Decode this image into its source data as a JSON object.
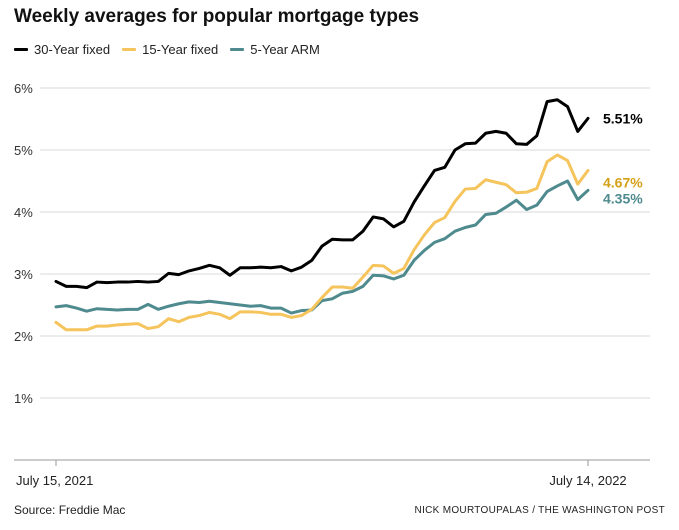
{
  "title": "Weekly averages for popular mortgage types",
  "source": "Source: Freddie Mac",
  "credit": "NICK MOURTOUPALAS / THE WASHINGTON POST",
  "chart_data": {
    "type": "line",
    "title": "Weekly averages for popular mortgage types",
    "xlabel": "",
    "ylabel": "",
    "ylim": [
      0,
      6
    ],
    "y_ticks": [
      1,
      2,
      3,
      4,
      5,
      6
    ],
    "y_tick_labels": [
      "1%",
      "2%",
      "3%",
      "4%",
      "5%",
      "6%"
    ],
    "x_tick_labels": [
      "July 15, 2021",
      "July 14, 2022"
    ],
    "grid": true,
    "legend_position": "top-left",
    "series": [
      {
        "name": "30-Year fixed",
        "color": "#000000",
        "end_label": "5.51%",
        "values": [
          2.88,
          2.8,
          2.8,
          2.78,
          2.87,
          2.86,
          2.87,
          2.87,
          2.88,
          2.87,
          2.88,
          3.01,
          2.99,
          3.05,
          3.09,
          3.14,
          3.1,
          2.98,
          3.1,
          3.1,
          3.11,
          3.1,
          3.12,
          3.05,
          3.11,
          3.22,
          3.45,
          3.56,
          3.55,
          3.55,
          3.69,
          3.92,
          3.89,
          3.76,
          3.85,
          4.16,
          4.42,
          4.67,
          4.72,
          5.0,
          5.1,
          5.11,
          5.27,
          5.3,
          5.27,
          5.1,
          5.09,
          5.23,
          5.78,
          5.81,
          5.7,
          5.3,
          5.51
        ]
      },
      {
        "name": "15-Year fixed",
        "color": "#f5c45c",
        "end_label": "4.67%",
        "values": [
          2.22,
          2.1,
          2.1,
          2.1,
          2.16,
          2.16,
          2.18,
          2.19,
          2.2,
          2.12,
          2.15,
          2.28,
          2.23,
          2.3,
          2.33,
          2.38,
          2.35,
          2.28,
          2.39,
          2.39,
          2.38,
          2.35,
          2.35,
          2.3,
          2.33,
          2.43,
          2.62,
          2.79,
          2.79,
          2.77,
          2.95,
          3.14,
          3.13,
          3.01,
          3.09,
          3.39,
          3.63,
          3.83,
          3.91,
          4.17,
          4.37,
          4.38,
          4.52,
          4.48,
          4.44,
          4.31,
          4.32,
          4.38,
          4.81,
          4.92,
          4.83,
          4.45,
          4.67
        ]
      },
      {
        "name": "5-Year ARM",
        "color": "#4e8a8e",
        "end_label": "4.35%",
        "values": [
          2.47,
          2.49,
          2.45,
          2.4,
          2.44,
          2.43,
          2.42,
          2.43,
          2.43,
          2.51,
          2.43,
          2.48,
          2.52,
          2.55,
          2.54,
          2.56,
          2.54,
          2.52,
          2.5,
          2.48,
          2.49,
          2.45,
          2.45,
          2.37,
          2.41,
          2.42,
          2.57,
          2.6,
          2.69,
          2.72,
          2.8,
          2.98,
          2.97,
          2.92,
          2.98,
          3.22,
          3.38,
          3.51,
          3.57,
          3.69,
          3.75,
          3.79,
          3.96,
          3.98,
          4.08,
          4.19,
          4.04,
          4.11,
          4.33,
          4.42,
          4.5,
          4.2,
          4.35
        ]
      }
    ]
  }
}
